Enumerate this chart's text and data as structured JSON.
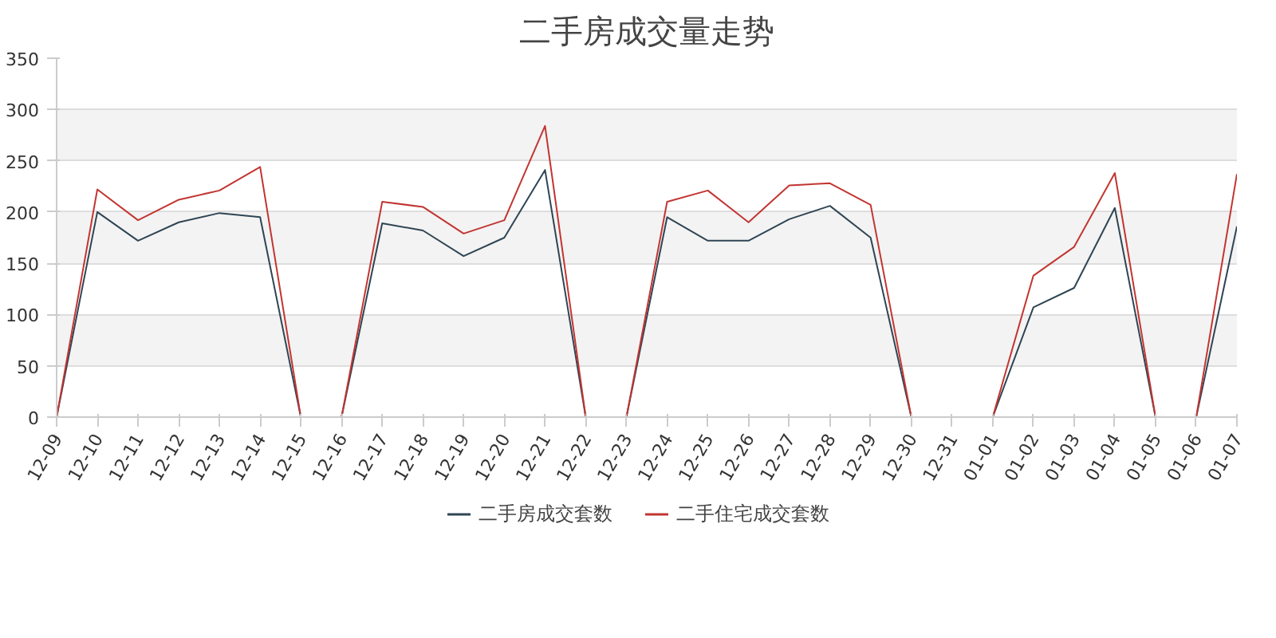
{
  "chart_data": {
    "type": "line",
    "title": "二手房成交量走势",
    "categories": [
      "12-09",
      "12-10",
      "12-11",
      "12-12",
      "12-13",
      "12-14",
      "12-15",
      "12-16",
      "12-17",
      "12-18",
      "12-19",
      "12-20",
      "12-21",
      "12-22",
      "12-23",
      "12-24",
      "12-25",
      "12-26",
      "12-27",
      "12-28",
      "12-29",
      "12-30",
      "12-31",
      "01-01",
      "01-02",
      "01-03",
      "01-04",
      "01-05",
      "01-06",
      "01-07"
    ],
    "series": [
      {
        "name": "二手房成交套数",
        "color": "#2f4554",
        "values": [
          0,
          200,
          172,
          190,
          199,
          195,
          0,
          0,
          189,
          182,
          157,
          175,
          241,
          0,
          0,
          195,
          172,
          172,
          193,
          206,
          175,
          0,
          0,
          0,
          107,
          126,
          204,
          0,
          0,
          186
        ]
      },
      {
        "name": "二手住宅成交套数",
        "color": "#c23531",
        "values": [
          0,
          222,
          192,
          212,
          221,
          244,
          0,
          0,
          210,
          205,
          179,
          192,
          284,
          0,
          0,
          210,
          221,
          190,
          226,
          228,
          207,
          0,
          0,
          0,
          138,
          166,
          238,
          0,
          0,
          237
        ]
      }
    ],
    "ylim": [
      0,
      350
    ],
    "yticks": [
      0,
      50,
      100,
      150,
      200,
      250,
      300,
      350
    ],
    "grid": "y",
    "legend": "bottom",
    "marker": "none",
    "line_style": "solid"
  }
}
